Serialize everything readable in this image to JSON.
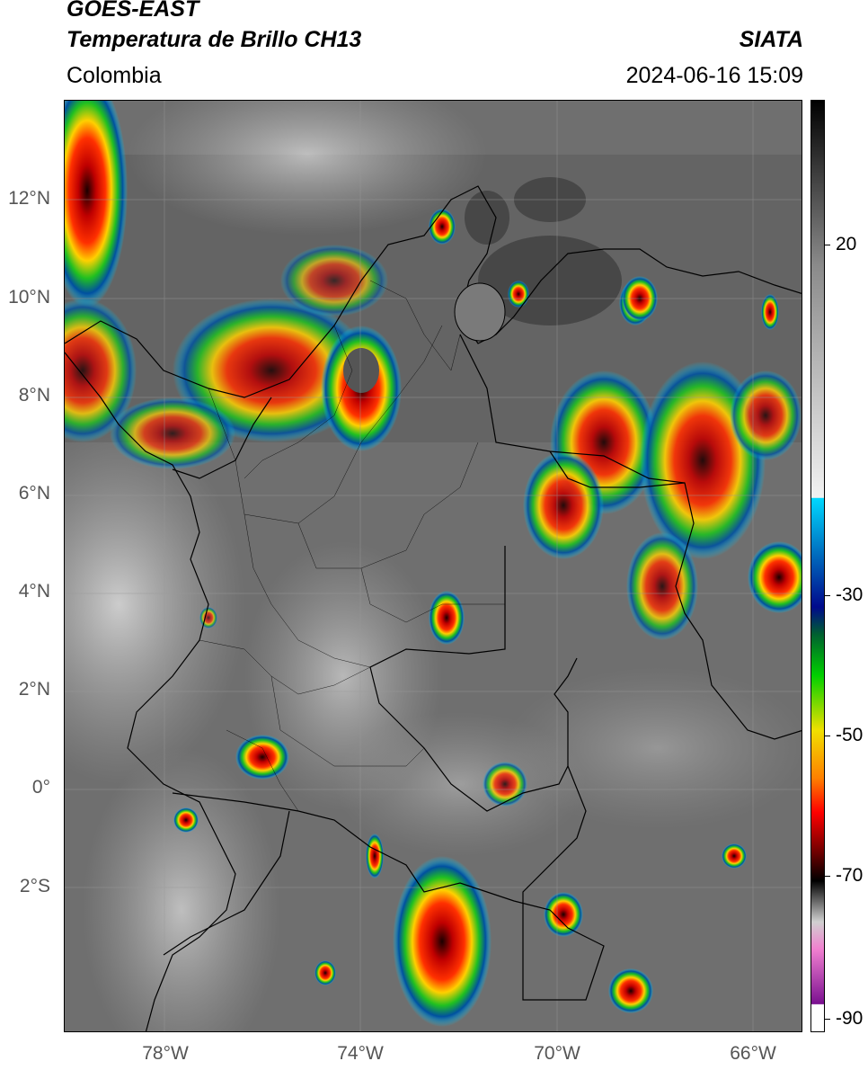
{
  "header": {
    "satellite": "GOES-EAST",
    "product": "Temperatura de Brillo CH13",
    "organization": "SIATA",
    "region": "Colombia",
    "timestamp": "2024-06-16 15:09"
  },
  "map": {
    "lat_labels": [
      "12°N",
      "10°N",
      "8°N",
      "6°N",
      "4°N",
      "2°N",
      "0°",
      "2°S"
    ],
    "lon_labels": [
      "78°W",
      "74°W",
      "70°W",
      "66°W"
    ],
    "lat_range": [
      -4.9,
      14.1
    ],
    "lon_range": [
      -80.0,
      -64.9
    ],
    "gridlines": true
  },
  "colorbar": {
    "tick_labels": [
      "20",
      "-30",
      "-50",
      "-70",
      "-90"
    ],
    "range": [
      -92,
      44
    ],
    "unit_hint": "°C",
    "stops": [
      {
        "value": 44,
        "color": "#000000"
      },
      {
        "value": 20,
        "color": "#8a8a8a"
      },
      {
        "value": -14,
        "color": "#f2f2f2"
      },
      {
        "value": -14.1,
        "color": "#00d8ff"
      },
      {
        "value": -22,
        "color": "#0070c0"
      },
      {
        "value": -30,
        "color": "#000a8c"
      },
      {
        "value": -34,
        "color": "#006030"
      },
      {
        "value": -40,
        "color": "#00d000"
      },
      {
        "value": -48,
        "color": "#f0e000"
      },
      {
        "value": -55,
        "color": "#ff8000"
      },
      {
        "value": -60,
        "color": "#ff0000"
      },
      {
        "value": -66,
        "color": "#6a0000"
      },
      {
        "value": -70,
        "color": "#000000"
      },
      {
        "value": -76,
        "color": "#d0d0d0"
      },
      {
        "value": -80,
        "color": "#f080d0"
      },
      {
        "value": -88,
        "color": "#7a1090"
      },
      {
        "value": -88.1,
        "color": "#ffffff"
      },
      {
        "value": -92,
        "color": "#ffffff"
      }
    ]
  }
}
